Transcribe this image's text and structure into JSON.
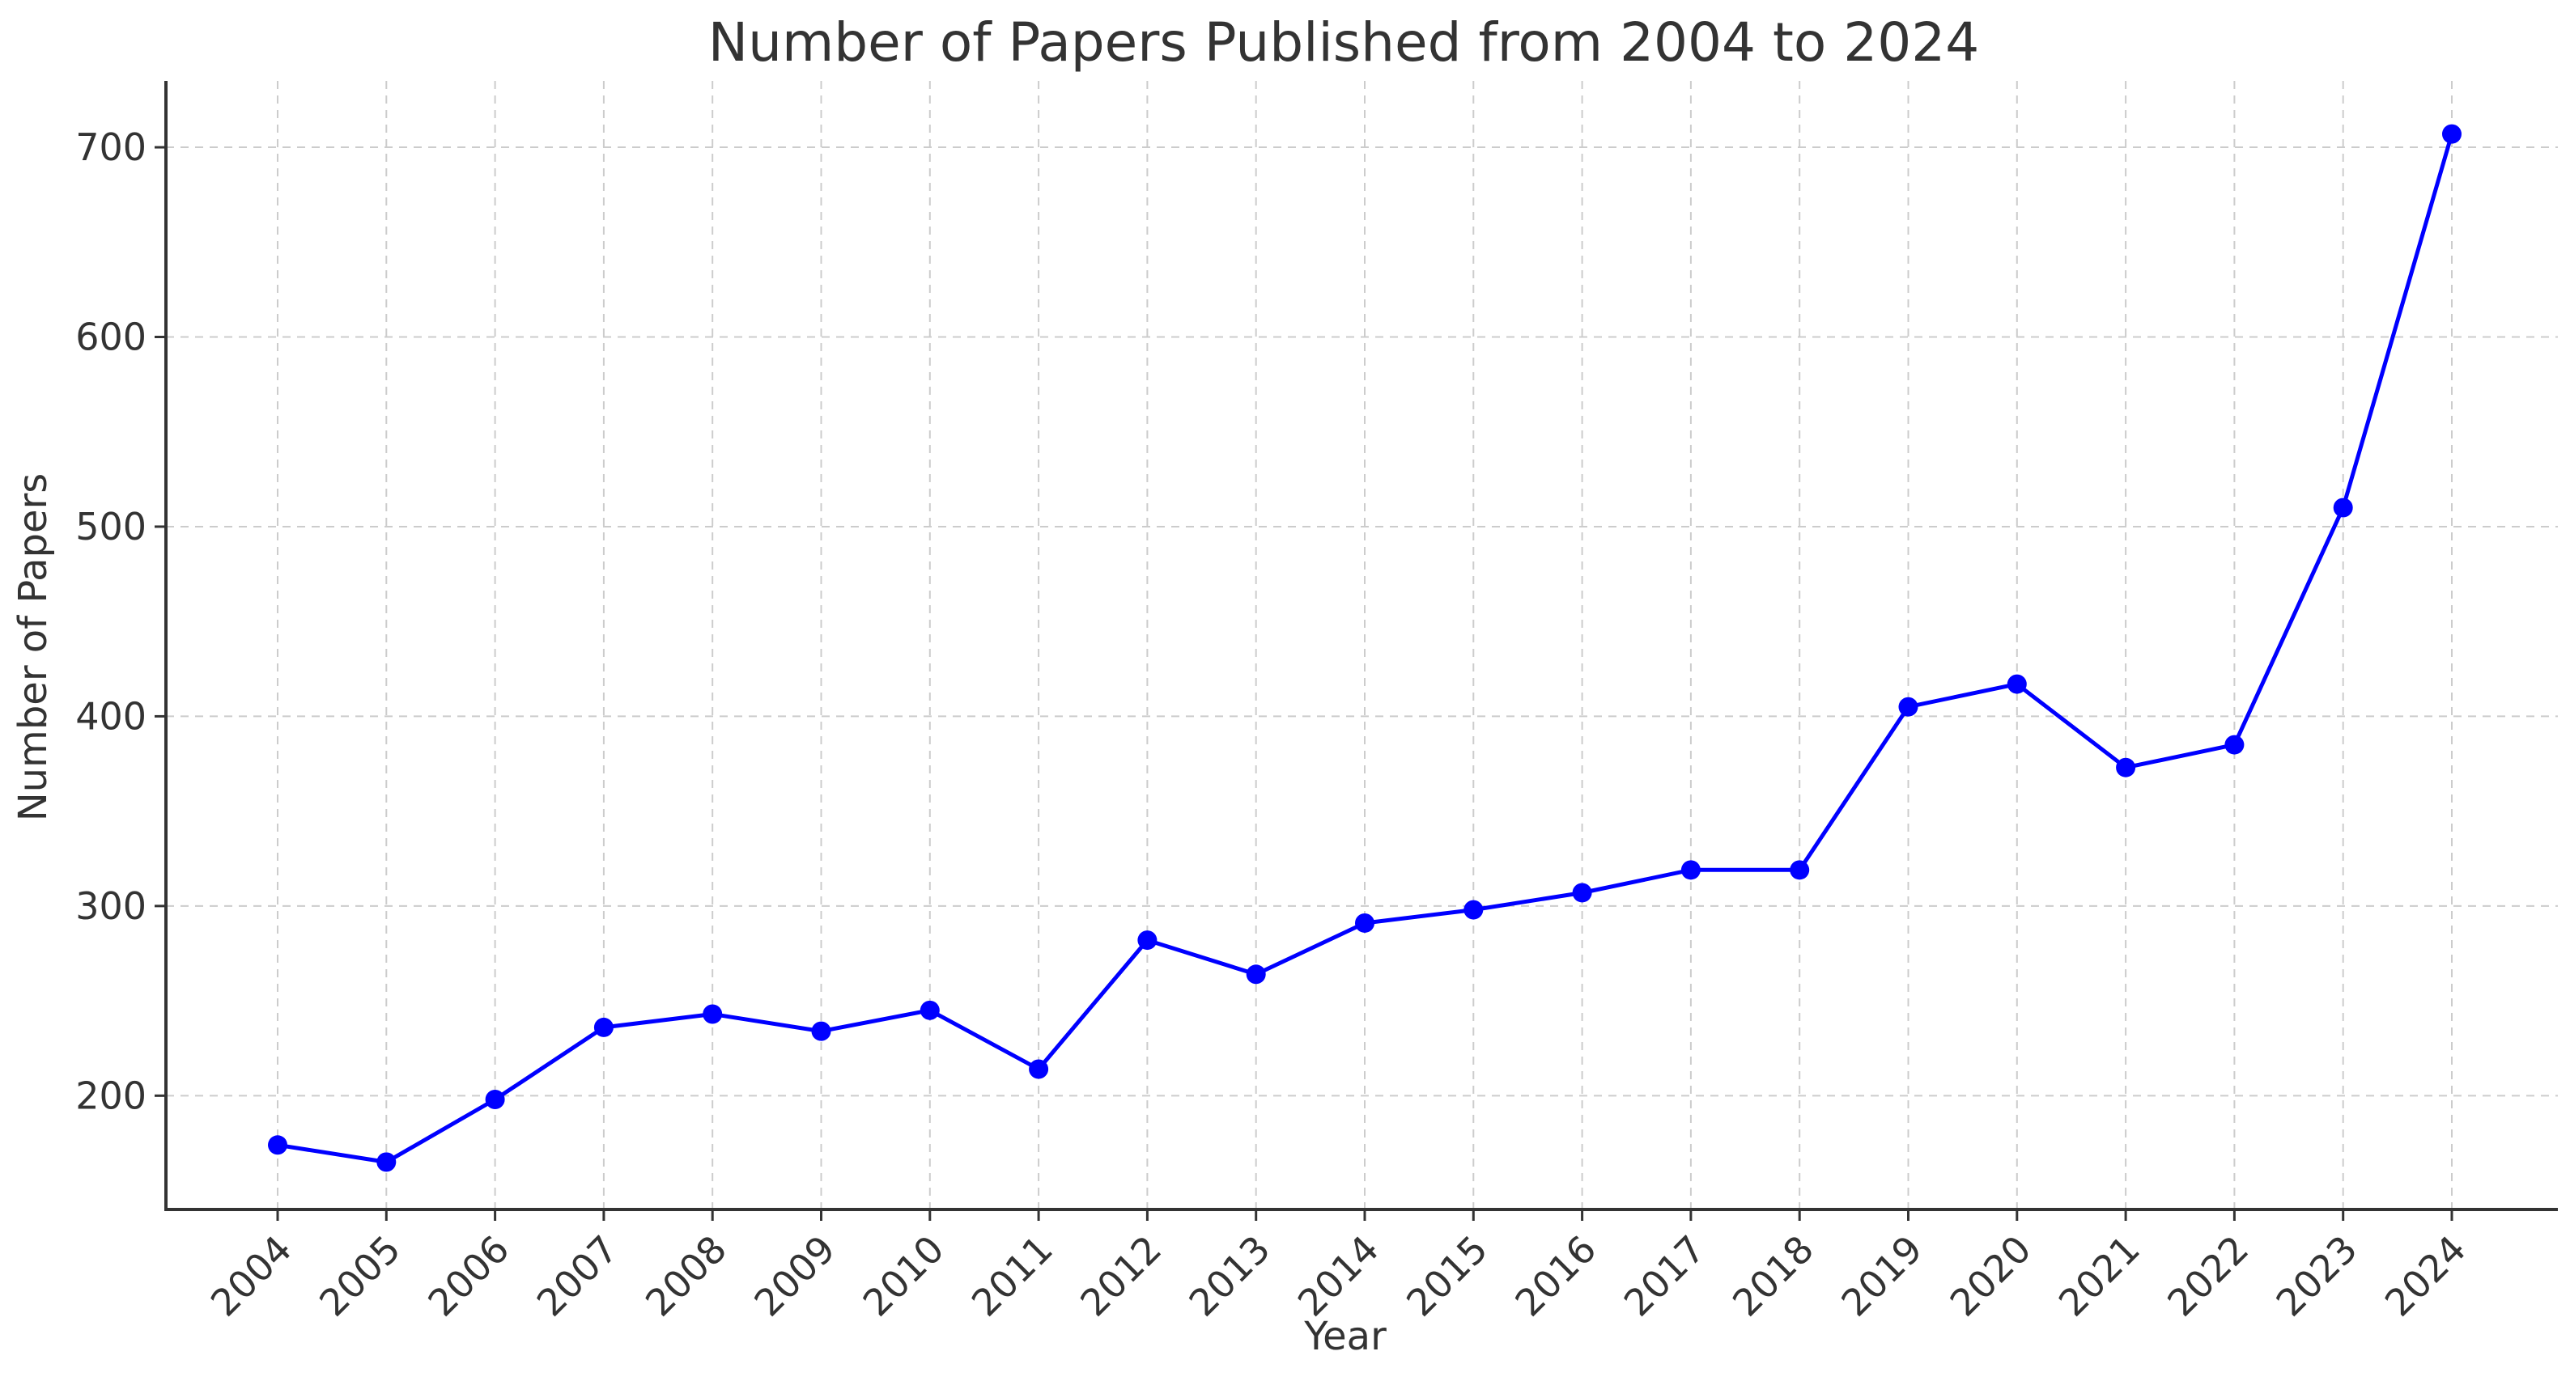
{
  "chart_data": {
    "type": "line",
    "title": "Number of Papers Published from 2004 to 2024",
    "xlabel": "Year",
    "ylabel": "Number of Papers",
    "categories": [
      "2004",
      "2005",
      "2006",
      "2007",
      "2008",
      "2009",
      "2010",
      "2011",
      "2012",
      "2013",
      "2014",
      "2015",
      "2016",
      "2017",
      "2018",
      "2019",
      "2020",
      "2021",
      "2022",
      "2023",
      "2024"
    ],
    "series": [
      {
        "values": [
          174,
          165,
          198,
          236,
          243,
          234,
          245,
          214,
          282,
          264,
          291,
          298,
          307,
          319,
          319,
          405,
          417,
          373,
          385,
          510,
          707
        ]
      }
    ],
    "ylim": [
      140,
      735
    ],
    "yticks": [
      "200",
      "300",
      "400",
      "500",
      "600",
      "700"
    ],
    "grid": true,
    "line_color": "#0000ff",
    "marker": "circle"
  }
}
